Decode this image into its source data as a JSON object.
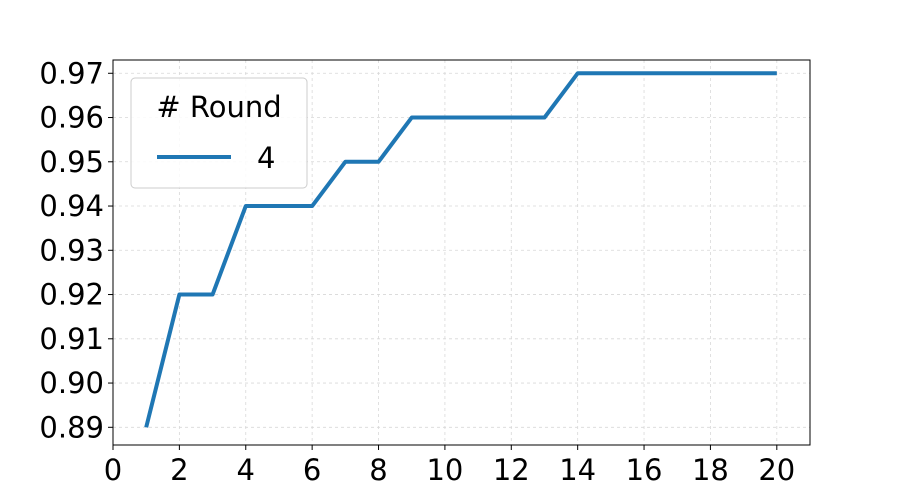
{
  "chart_data": {
    "type": "line",
    "title": "",
    "xlabel": "",
    "ylabel": "",
    "xlim": [
      0,
      21
    ],
    "ylim": [
      0.886,
      0.973
    ],
    "x_ticks": [
      0,
      2,
      4,
      6,
      8,
      10,
      12,
      14,
      16,
      18,
      20
    ],
    "y_ticks": [
      0.89,
      0.9,
      0.91,
      0.92,
      0.93,
      0.94,
      0.95,
      0.96,
      0.97
    ],
    "x_tick_labels": [
      "0",
      "2",
      "4",
      "6",
      "8",
      "10",
      "12",
      "14",
      "16",
      "18",
      "20"
    ],
    "y_tick_labels": [
      "0.89",
      "0.90",
      "0.91",
      "0.92",
      "0.93",
      "0.94",
      "0.95",
      "0.96",
      "0.97"
    ],
    "grid": true,
    "legend": {
      "title": "# Round",
      "placement": "top-left"
    },
    "series": [
      {
        "name": "4",
        "color": "#1f77b4",
        "x": [
          1,
          2,
          3,
          4,
          5,
          6,
          7,
          8,
          9,
          10,
          11,
          12,
          13,
          14,
          15,
          16,
          17,
          18,
          19,
          20
        ],
        "y": [
          0.89,
          0.92,
          0.92,
          0.94,
          0.94,
          0.94,
          0.95,
          0.95,
          0.96,
          0.96,
          0.96,
          0.96,
          0.96,
          0.97,
          0.97,
          0.97,
          0.97,
          0.97,
          0.97,
          0.97
        ]
      }
    ]
  }
}
